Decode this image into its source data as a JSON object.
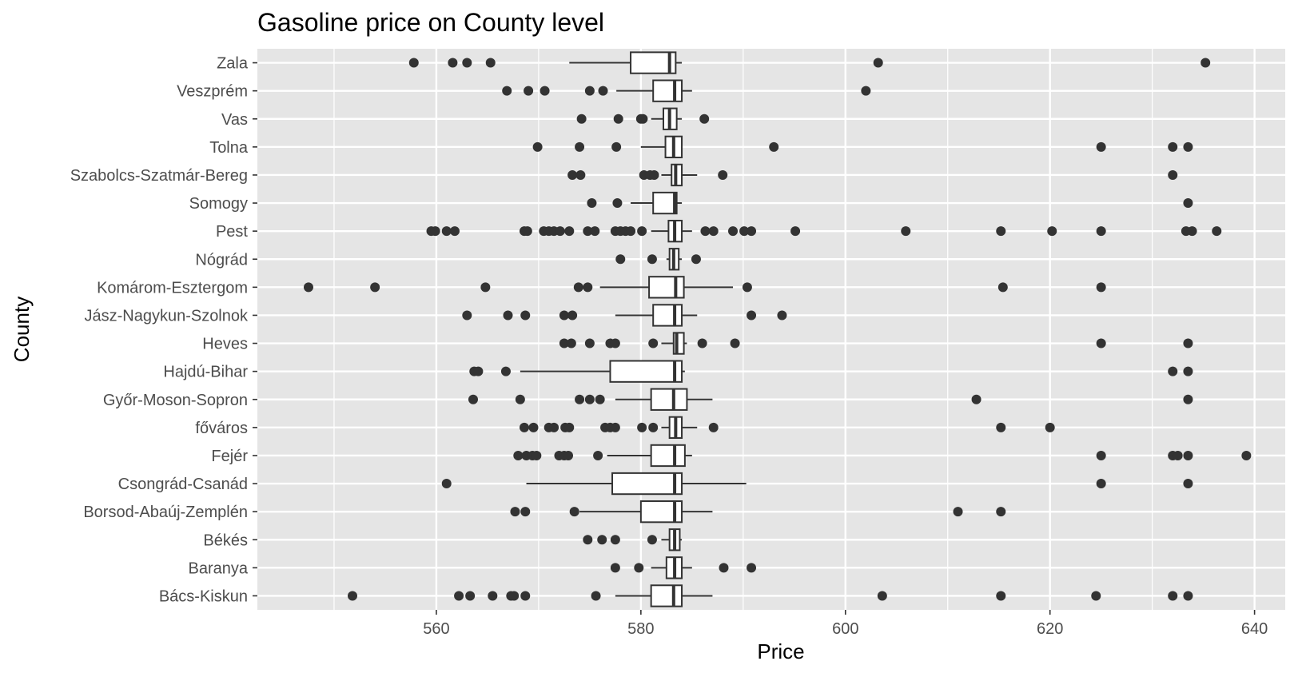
{
  "chart_data": {
    "type": "boxplot",
    "orientation": "horizontal",
    "title": "Gasoline price on County level",
    "xlabel": "Price",
    "ylabel": "County",
    "xlim": [
      542.5,
      643.0
    ],
    "xticks": [
      560,
      580,
      600,
      620,
      640
    ],
    "grid": true,
    "legend": "none",
    "colors": {
      "panel": "#e5e5e5",
      "grid": "#ffffff",
      "box_fill": "#ffffff",
      "box_stroke": "#333333",
      "outlier": "#333333"
    },
    "categories": [
      "Bács-Kiskun",
      "Baranya",
      "Békés",
      "Borsod-Abaúj-Zemplén",
      "Csongrád-Csanád",
      "Fejér",
      "főváros",
      "Győr-Moson-Sopron",
      "Hajdú-Bihar",
      "Heves",
      "Jász-Nagykun-Szolnok",
      "Komárom-Esztergom",
      "Nógrád",
      "Pest",
      "Somogy",
      "Szabolcs-Szatmár-Bereg",
      "Tolna",
      "Vas",
      "Veszprém",
      "Zala"
    ],
    "boxes": [
      {
        "county": "Bács-Kiskun",
        "whisker_low": 577.5,
        "q1": 581.0,
        "median": 583.2,
        "q3": 584.0,
        "whisker_high": 587.0,
        "outliers": [
          551.8,
          562.2,
          563.3,
          565.5,
          567.3,
          567.6,
          568.7,
          575.6,
          603.6,
          615.2,
          624.5,
          632.0,
          633.5
        ]
      },
      {
        "county": "Baranya",
        "whisker_low": 581.0,
        "q1": 582.5,
        "median": 583.3,
        "q3": 584.0,
        "whisker_high": 585.0,
        "outliers": [
          577.5,
          579.8,
          588.1,
          590.8
        ]
      },
      {
        "county": "Békés",
        "whisker_low": 582.0,
        "q1": 582.8,
        "median": 583.3,
        "q3": 583.8,
        "whisker_high": 584.0,
        "outliers": [
          574.8,
          576.2,
          577.5,
          581.1
        ]
      },
      {
        "county": "Borsod-Abaúj-Zemplén",
        "whisker_low": 574.0,
        "q1": 580.0,
        "median": 583.3,
        "q3": 584.0,
        "whisker_high": 587.0,
        "outliers": [
          567.7,
          568.7,
          573.5,
          611.0,
          615.2
        ]
      },
      {
        "county": "Csongrád-Csanád",
        "whisker_low": 568.8,
        "q1": 577.2,
        "median": 583.3,
        "q3": 584.0,
        "whisker_high": 590.3,
        "outliers": [
          561.0,
          625.0,
          633.5
        ]
      },
      {
        "county": "Fejér",
        "whisker_low": 576.7,
        "q1": 581.0,
        "median": 583.3,
        "q3": 584.3,
        "whisker_high": 585.0,
        "outliers": [
          568.0,
          568.8,
          569.4,
          569.8,
          572.0,
          572.5,
          572.9,
          575.8,
          625.0,
          632.0,
          632.5,
          633.5,
          639.2
        ]
      },
      {
        "county": "főváros",
        "whisker_low": 582.0,
        "q1": 582.8,
        "median": 583.4,
        "q3": 584.0,
        "whisker_high": 585.5,
        "outliers": [
          568.6,
          569.5,
          571.0,
          571.5,
          572.6,
          573.0,
          576.5,
          577.0,
          577.5,
          580.1,
          581.2,
          587.1,
          615.2,
          620.0
        ]
      },
      {
        "county": "Győr-Moson-Sopron",
        "whisker_low": 577.5,
        "q1": 581.0,
        "median": 583.2,
        "q3": 584.5,
        "whisker_high": 587.0,
        "outliers": [
          563.6,
          568.2,
          574.0,
          575.0,
          576.0,
          612.8,
          633.5
        ]
      },
      {
        "county": "Hajdú-Bihar",
        "whisker_low": 568.2,
        "q1": 577.0,
        "median": 583.3,
        "q3": 584.0,
        "whisker_high": 584.3,
        "outliers": [
          563.7,
          564.1,
          566.8,
          632.0,
          633.5
        ]
      },
      {
        "county": "Heves",
        "whisker_low": 582.0,
        "q1": 583.2,
        "median": 583.5,
        "q3": 584.2,
        "whisker_high": 584.5,
        "outliers": [
          572.5,
          573.2,
          575.0,
          577.0,
          577.5,
          581.2,
          586.0,
          589.2,
          625.0,
          633.5
        ]
      },
      {
        "county": "Jász-Nagykun-Szolnok",
        "whisker_low": 577.5,
        "q1": 581.2,
        "median": 583.3,
        "q3": 584.0,
        "whisker_high": 585.5,
        "outliers": [
          563.0,
          567.0,
          568.7,
          572.5,
          573.3,
          590.8,
          593.8
        ]
      },
      {
        "county": "Komárom-Esztergom",
        "whisker_low": 576.0,
        "q1": 580.8,
        "median": 583.4,
        "q3": 584.2,
        "whisker_high": 589.0,
        "outliers": [
          547.5,
          554.0,
          564.8,
          573.9,
          574.8,
          590.4,
          615.4,
          625.0
        ]
      },
      {
        "county": "Nógrád",
        "whisker_low": 582.5,
        "q1": 582.8,
        "median": 583.2,
        "q3": 583.7,
        "whisker_high": 584.0,
        "outliers": [
          578.0,
          581.1,
          585.4
        ]
      },
      {
        "county": "Pest",
        "whisker_low": 581.0,
        "q1": 582.7,
        "median": 583.3,
        "q3": 584.0,
        "whisker_high": 585.0,
        "outliers": [
          559.5,
          559.9,
          561.0,
          561.8,
          568.6,
          568.9,
          570.5,
          571.0,
          571.5,
          572.1,
          573.0,
          574.8,
          575.5,
          577.5,
          578.0,
          578.5,
          579.0,
          580.1,
          586.3,
          587.1,
          589.0,
          590.1,
          590.8,
          595.1,
          605.9,
          615.2,
          620.2,
          625.0,
          633.3,
          633.9,
          636.3
        ]
      },
      {
        "county": "Somogy",
        "whisker_low": 579.0,
        "q1": 581.2,
        "median": 583.3,
        "q3": 583.5,
        "whisker_high": 584.0,
        "outliers": [
          575.2,
          577.7,
          633.5
        ]
      },
      {
        "county": "Szabolcs-Szatmár-Bereg",
        "whisker_low": 582.0,
        "q1": 583.0,
        "median": 583.4,
        "q3": 584.0,
        "whisker_high": 585.5,
        "outliers": [
          573.3,
          574.1,
          580.3,
          580.9,
          581.3,
          588.0,
          632.0
        ]
      },
      {
        "county": "Tolna",
        "whisker_low": 580.0,
        "q1": 582.4,
        "median": 583.2,
        "q3": 584.0,
        "whisker_high": 584.0,
        "outliers": [
          569.9,
          574.0,
          577.6,
          593.0,
          625.0,
          632.0,
          633.5
        ]
      },
      {
        "county": "Vas",
        "whisker_low": 581.0,
        "q1": 582.2,
        "median": 582.8,
        "q3": 583.5,
        "whisker_high": 584.0,
        "outliers": [
          574.2,
          577.8,
          580.0,
          580.2,
          586.2
        ]
      },
      {
        "county": "Veszprém",
        "whisker_low": 577.6,
        "q1": 581.2,
        "median": 583.3,
        "q3": 584.0,
        "whisker_high": 585.0,
        "outliers": [
          566.9,
          569.0,
          570.6,
          575.0,
          576.3,
          602.0
        ]
      },
      {
        "county": "Zala",
        "whisker_low": 573.0,
        "q1": 579.0,
        "median": 582.8,
        "q3": 583.4,
        "whisker_high": 584.0,
        "outliers": [
          557.8,
          561.6,
          563.0,
          565.3,
          603.2,
          635.2
        ]
      }
    ]
  }
}
